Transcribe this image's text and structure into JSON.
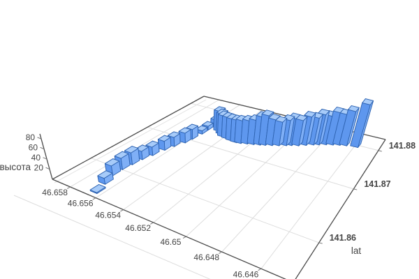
{
  "chart_data": {
    "type": "bar",
    "subtype": "3d-bars",
    "title": "",
    "xlabel": "",
    "ylabel": "lat",
    "zlabel": "высота",
    "x_tick_labels": [
      "46.658",
      "46.656",
      "46.654",
      "46.652",
      "46.65",
      "46.648",
      "46.646"
    ],
    "x_tick_values": [
      46.658,
      46.656,
      46.654,
      46.652,
      46.65,
      46.648,
      46.646
    ],
    "y_tick_labels": [
      "141.86",
      "141.87",
      "141.88"
    ],
    "y_tick_values": [
      141.86,
      141.87,
      141.88
    ],
    "z_tick_labels": [
      "20",
      "40",
      "60",
      "80"
    ],
    "z_tick_values": [
      20,
      40,
      60,
      80
    ],
    "x_range": [
      46.6445,
      46.6595
    ],
    "y_range": [
      141.8545,
      141.8835
    ],
    "z_range": [
      0,
      90
    ],
    "bar_dx": 0.0005,
    "bar_dy": 0.0012,
    "bars": [
      {
        "x": 46.6565,
        "y": 141.8557,
        "h": 2
      },
      {
        "x": 46.6568,
        "y": 141.8574,
        "h": 12
      },
      {
        "x": 46.6571,
        "y": 141.8591,
        "h": 19
      },
      {
        "x": 46.6571,
        "y": 141.8606,
        "h": 22
      },
      {
        "x": 46.657,
        "y": 141.862,
        "h": 23
      },
      {
        "x": 46.6569,
        "y": 141.8635,
        "h": 16
      },
      {
        "x": 46.6567,
        "y": 141.8649,
        "h": 16
      },
      {
        "x": 46.6565,
        "y": 141.8667,
        "h": 17
      },
      {
        "x": 46.6563,
        "y": 141.8681,
        "h": 17
      },
      {
        "x": 46.656,
        "y": 141.8696,
        "h": 18
      },
      {
        "x": 46.6559,
        "y": 141.8709,
        "h": 18
      },
      {
        "x": 46.6558,
        "y": 141.8728,
        "h": 6
      },
      {
        "x": 46.6558,
        "y": 141.8742,
        "h": 7
      },
      {
        "x": 46.6555,
        "y": 141.8754,
        "h": 14
      },
      {
        "x": 46.655,
        "y": 141.8747,
        "h": 36
      },
      {
        "x": 46.6546,
        "y": 141.8741,
        "h": 37
      },
      {
        "x": 46.6543,
        "y": 141.8736,
        "h": 38
      },
      {
        "x": 46.6539,
        "y": 141.8734,
        "h": 39
      },
      {
        "x": 46.6535,
        "y": 141.8732,
        "h": 40
      },
      {
        "x": 46.6531,
        "y": 141.8731,
        "h": 41
      },
      {
        "x": 46.6528,
        "y": 141.8732,
        "h": 42
      },
      {
        "x": 46.6524,
        "y": 141.8735,
        "h": 43
      },
      {
        "x": 46.652,
        "y": 141.8738,
        "h": 45
      },
      {
        "x": 46.6516,
        "y": 141.8741,
        "h": 52
      },
      {
        "x": 46.6513,
        "y": 141.8744,
        "h": 55
      },
      {
        "x": 46.6509,
        "y": 141.8748,
        "h": 48
      },
      {
        "x": 46.6505,
        "y": 141.8752,
        "h": 44
      },
      {
        "x": 46.6501,
        "y": 141.8757,
        "h": 47
      },
      {
        "x": 46.6498,
        "y": 141.8761,
        "h": 50
      },
      {
        "x": 46.6494,
        "y": 141.8765,
        "h": 47
      },
      {
        "x": 46.649,
        "y": 141.8771,
        "h": 53
      },
      {
        "x": 46.6486,
        "y": 141.8777,
        "h": 50
      },
      {
        "x": 46.6483,
        "y": 141.8781,
        "h": 56
      },
      {
        "x": 46.6479,
        "y": 141.8786,
        "h": 53
      },
      {
        "x": 46.6475,
        "y": 141.879,
        "h": 60
      },
      {
        "x": 46.6471,
        "y": 141.8794,
        "h": 57
      },
      {
        "x": 46.6467,
        "y": 141.8797,
        "h": 64
      },
      {
        "x": 46.646,
        "y": 141.88,
        "h": 80
      }
    ],
    "colors": {
      "bar_top": "#a7cbf9",
      "bar_front": "#5e97ee",
      "bar_side": "#7faff6",
      "bar_back": "#6ea2f2",
      "bar_edge": "#2e63b1",
      "grid": "#dddddd",
      "axis_line": "#4a4a4a",
      "tick_text": "#444444",
      "background": "#ffffff"
    },
    "layout": {
      "grid": true,
      "legend": false
    }
  }
}
